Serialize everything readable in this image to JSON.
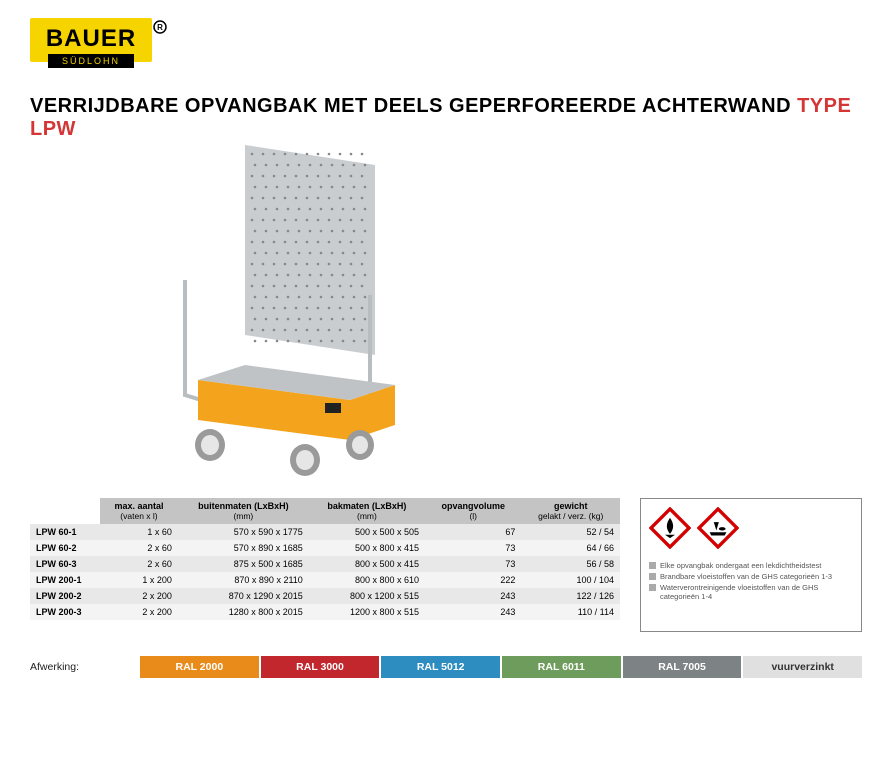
{
  "brand": {
    "name": "BAUER",
    "sub": "SÜDLOHN"
  },
  "title": {
    "main": "VERRIJDBARE OPVANGBAK MET DEELS GEPERFOREERDE ACHTERWAND ",
    "type": "TYPE LPW",
    "color_main": "#000000",
    "color_type": "#d43535",
    "fontsize": 20
  },
  "table": {
    "header_bg": "#c4c4c4",
    "row_odd_bg": "#e8e8e8",
    "row_even_bg": "#f4f4f4",
    "font_size": 9,
    "columns": [
      {
        "label": "",
        "sub": ""
      },
      {
        "label": "max. aantal",
        "sub": "(vaten x l)"
      },
      {
        "label": "buitenmaten (LxBxH)",
        "sub": "(mm)"
      },
      {
        "label": "bakmaten (LxBxH)",
        "sub": "(mm)"
      },
      {
        "label": "opvangvolume",
        "sub": "(l)"
      },
      {
        "label": "gewicht",
        "sub": "gelakt / verz. (kg)"
      }
    ],
    "rows": [
      {
        "model": "LPW 60-1",
        "aantal": "1 x 60",
        "buiten": "570 x  590 x 1775",
        "bak": "500 x  500 x 505",
        "vol": "67",
        "gew": "52 / 54"
      },
      {
        "model": "LPW 60-2",
        "aantal": "2 x 60",
        "buiten": "570 x  890 x 1685",
        "bak": "500 x  800 x 415",
        "vol": "73",
        "gew": "64 / 66"
      },
      {
        "model": "LPW 60-3",
        "aantal": "2 x 60",
        "buiten": "875 x  500 x 1685",
        "bak": "800 x  500 x 415",
        "vol": "73",
        "gew": "56 / 58"
      },
      {
        "model": "LPW 200-1",
        "aantal": "1 x 200",
        "buiten": "870 x  890 x 2110",
        "bak": "800 x  800 x 610",
        "vol": "222",
        "gew": "100 / 104"
      },
      {
        "model": "LPW 200-2",
        "aantal": "2 x 200",
        "buiten": "870 x 1290 x 2015",
        "bak": "800 x 1200 x 515",
        "vol": "243",
        "gew": "122 / 126"
      },
      {
        "model": "LPW 200-3",
        "aantal": "2 x 200",
        "buiten": "1280 x  800 x 2015",
        "bak": "1200 x  800 x 515",
        "vol": "243",
        "gew": "110 / 114"
      }
    ]
  },
  "info": {
    "border_color": "#888888",
    "bullet_color": "#aaaaaa",
    "lines": [
      "Elke opvangbak ondergaat een lekdichtheidstest",
      "Brandbare vloeistoffen van de GHS categorieën 1-3",
      "Waterverontreinigende vloeistoffen van de GHS categorieën 1-4"
    ],
    "hazard_icons": [
      "flammable",
      "environment"
    ],
    "hazard_colors": {
      "border": "#d40000",
      "symbol": "#000000",
      "bg": "#ffffff"
    }
  },
  "finish": {
    "label": "Afwerking:",
    "chips": [
      {
        "text": "RAL 2000",
        "bg": "#e88b1a",
        "fg": "#ffffff"
      },
      {
        "text": "RAL 3000",
        "bg": "#c1272d",
        "fg": "#ffffff"
      },
      {
        "text": "RAL 5012",
        "bg": "#2e8dc0",
        "fg": "#ffffff"
      },
      {
        "text": "RAL 6011",
        "bg": "#6d9c5c",
        "fg": "#ffffff"
      },
      {
        "text": "RAL 7005",
        "bg": "#7d8284",
        "fg": "#ffffff"
      },
      {
        "text": "vuurverzinkt",
        "bg": "#e0e0e0",
        "fg": "#333333"
      }
    ]
  },
  "product_colors": {
    "tray": "#f4a31c",
    "panel": "#c9cdd0",
    "rail": "#b8bdc0",
    "wheel_hub": "#e6e6e6",
    "wheel_tire": "#9a9a9a"
  }
}
